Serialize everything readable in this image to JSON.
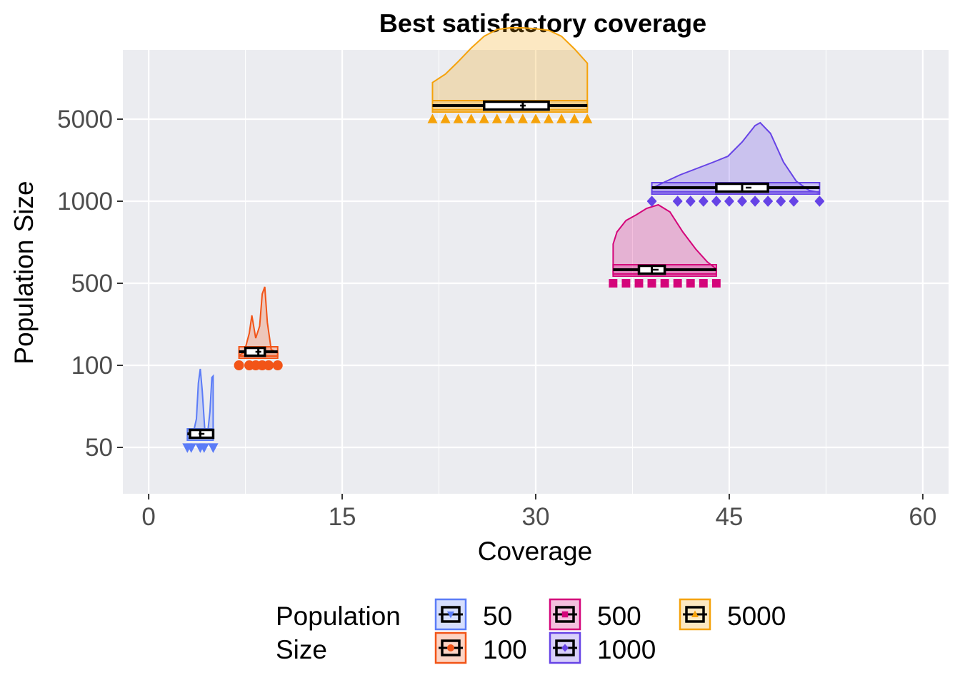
{
  "chart_data": {
    "type": "raincloud",
    "title": "Best satisfactory coverage",
    "xlabel": "Coverage",
    "ylabel": "Population Size",
    "xlim": [
      -2,
      62
    ],
    "x_ticks": [
      0,
      15,
      30,
      45,
      60
    ],
    "categories": [
      "50",
      "100",
      "500",
      "1000",
      "5000"
    ],
    "grid": true,
    "legend": {
      "title_lines": [
        "Population",
        "Size"
      ],
      "position": "bottom"
    },
    "series": [
      {
        "name": "50",
        "color": "#5b7cf7",
        "shape": "triangle-down",
        "min": 3,
        "q1": 3.2,
        "median": 4,
        "mean": 4.1,
        "q3": 5,
        "max": 5,
        "points": [
          3,
          3.3,
          4,
          4.3,
          5,
          5
        ],
        "density": [
          [
            3,
            0.02
          ],
          [
            3.4,
            0.05
          ],
          [
            3.7,
            0.3
          ],
          [
            3.85,
            0.8
          ],
          [
            4,
            1.0
          ],
          [
            4.15,
            0.7
          ],
          [
            4.35,
            0.15
          ],
          [
            4.55,
            0.06
          ],
          [
            4.75,
            0.4
          ],
          [
            4.9,
            0.88
          ],
          [
            5,
            0.9
          ]
        ]
      },
      {
        "name": "100",
        "color": "#f25417",
        "shape": "circle",
        "min": 7,
        "q1": 7.5,
        "median": 8.5,
        "mean": 8.5,
        "q3": 9,
        "max": 10,
        "points": [
          7,
          7.8,
          8.3,
          8.8,
          9.3,
          10
        ],
        "density": [
          [
            7,
            0.04
          ],
          [
            7.4,
            0.08
          ],
          [
            7.8,
            0.35
          ],
          [
            8,
            0.6
          ],
          [
            8.3,
            0.28
          ],
          [
            8.6,
            0.45
          ],
          [
            8.8,
            0.9
          ],
          [
            9,
            1.0
          ],
          [
            9.2,
            0.5
          ],
          [
            9.5,
            0.12
          ],
          [
            10,
            0.08
          ]
        ]
      },
      {
        "name": "500",
        "color": "#d4057a",
        "shape": "square",
        "min": 36,
        "q1": 38,
        "median": 39,
        "mean": 39.3,
        "q3": 40,
        "max": 44,
        "points": [
          36,
          37,
          38,
          39,
          39,
          40,
          41,
          42,
          43,
          44
        ],
        "density": [
          [
            36,
            0.45
          ],
          [
            36.3,
            0.62
          ],
          [
            37,
            0.78
          ],
          [
            37.8,
            0.86
          ],
          [
            38.6,
            0.95
          ],
          [
            39.5,
            1.0
          ],
          [
            40.4,
            0.9
          ],
          [
            41.4,
            0.62
          ],
          [
            42.4,
            0.38
          ],
          [
            43.3,
            0.2
          ],
          [
            44,
            0.1
          ]
        ]
      },
      {
        "name": "1000",
        "color": "#6643e6",
        "shape": "diamond",
        "min": 39,
        "q1": 44,
        "median": 46,
        "mean": 46.5,
        "q3": 48,
        "max": 52,
        "points": [
          39,
          41,
          42,
          43,
          44,
          45,
          46,
          47,
          48,
          48,
          49,
          50,
          52
        ],
        "density": [
          [
            39,
            0.08
          ],
          [
            40,
            0.17
          ],
          [
            41.2,
            0.27
          ],
          [
            42.5,
            0.36
          ],
          [
            43.8,
            0.45
          ],
          [
            44.9,
            0.53
          ],
          [
            46,
            0.73
          ],
          [
            47,
            0.96
          ],
          [
            47.4,
            1.0
          ],
          [
            48.2,
            0.85
          ],
          [
            49.2,
            0.45
          ],
          [
            50.2,
            0.18
          ],
          [
            51.2,
            0.05
          ],
          [
            52,
            0.02
          ]
        ]
      },
      {
        "name": "5000",
        "color": "#f5a20a",
        "shape": "triangle-up",
        "min": 22,
        "q1": 26,
        "median": 29,
        "mean": 29,
        "q3": 31,
        "max": 34,
        "points": [
          22,
          23,
          24,
          25,
          26,
          27,
          28,
          29,
          30,
          31,
          32,
          33,
          34
        ],
        "density": [
          [
            22,
            0.35
          ],
          [
            23,
            0.45
          ],
          [
            24,
            0.6
          ],
          [
            25,
            0.76
          ],
          [
            26,
            0.9
          ],
          [
            27,
            0.98
          ],
          [
            28,
            1.0
          ],
          [
            29,
            1.0
          ],
          [
            30,
            0.99
          ],
          [
            31,
            0.97
          ],
          [
            32,
            0.9
          ],
          [
            33,
            0.75
          ],
          [
            34,
            0.58
          ]
        ]
      }
    ]
  }
}
